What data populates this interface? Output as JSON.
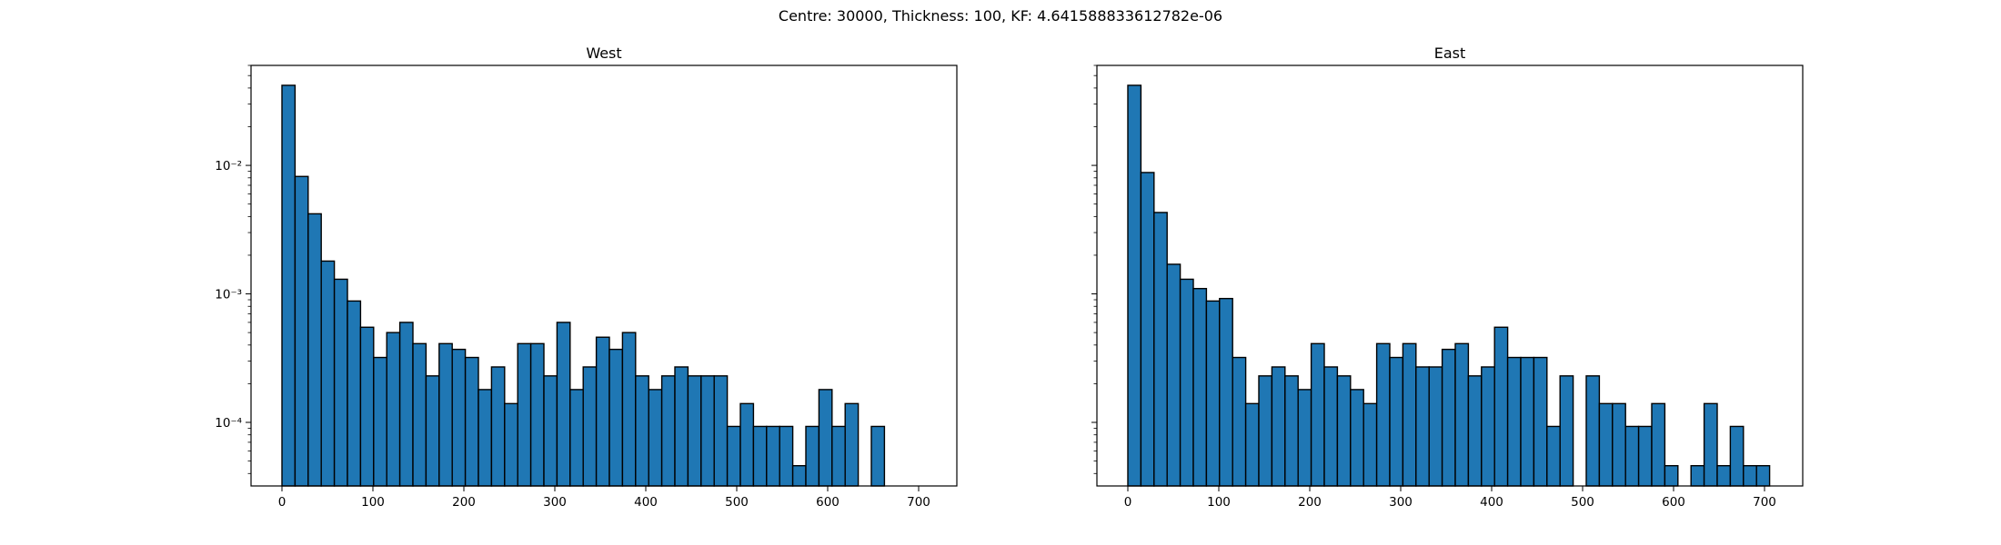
{
  "figure_title": "Centre: 30000, Thickness: 100, KF: 4.641588833612782e-06",
  "colors": {
    "bar_fill": "#1f77b4",
    "bar_edge": "#000000",
    "axes": "#000000"
  },
  "chart_data": [
    {
      "type": "bar",
      "title": "West",
      "xlabel": "",
      "ylabel": "",
      "yscale": "log",
      "xlim": [
        -34,
        742
      ],
      "ylim": [
        3.2e-05,
        0.06
      ],
      "x_ticks": [
        0,
        100,
        200,
        300,
        400,
        500,
        600,
        700
      ],
      "y_ticks": [
        0.0001,
        0.001,
        0.01
      ],
      "y_tick_labels": [
        "10⁻⁴",
        "10⁻³",
        "10⁻²"
      ],
      "bin_edges": [
        0,
        14.4,
        28.8,
        43.2,
        57.6,
        72,
        86.4,
        100.8,
        115.2,
        129.6,
        144,
        158.4,
        172.8,
        187.2,
        201.6,
        216,
        230.4,
        244.8,
        259.2,
        273.6,
        288,
        302.4,
        316.8,
        331.2,
        345.6,
        360,
        374.4,
        388.8,
        403.2,
        417.6,
        432,
        446.4,
        460.8,
        475.2,
        489.6,
        504,
        518.4,
        532.8,
        547.2,
        561.6,
        576,
        590.4,
        604.8,
        619.2,
        633.6,
        648,
        662.4,
        676.8,
        691.2,
        705.6
      ],
      "values": [
        0.042,
        0.0082,
        0.0042,
        0.0018,
        0.0013,
        0.00088,
        0.00055,
        0.00032,
        0.0005,
        0.0006,
        0.00041,
        0.00023,
        0.00041,
        0.00037,
        0.00032,
        0.00018,
        0.00027,
        0.00014,
        0.00041,
        0.00041,
        0.00023,
        0.0006,
        0.00018,
        0.00027,
        0.00046,
        0.00037,
        0.0005,
        0.00023,
        0.00018,
        0.00023,
        0.00027,
        0.00023,
        0.00023,
        0.00023,
        9.3e-05,
        0.00014,
        9.3e-05,
        9.3e-05,
        9.3e-05,
        4.6e-05,
        9.3e-05,
        0.00018,
        9.3e-05,
        0.00014,
        0,
        9.3e-05,
        0,
        0,
        0
      ]
    },
    {
      "type": "bar",
      "title": "East",
      "xlabel": "",
      "ylabel": "",
      "yscale": "log",
      "xlim": [
        -34,
        742
      ],
      "ylim": [
        3.2e-05,
        0.06
      ],
      "x_ticks": [
        0,
        100,
        200,
        300,
        400,
        500,
        600,
        700
      ],
      "y_ticks": [
        0.0001,
        0.001,
        0.01
      ],
      "y_tick_labels": [],
      "bin_edges": [
        0,
        14.4,
        28.8,
        43.2,
        57.6,
        72,
        86.4,
        100.8,
        115.2,
        129.6,
        144,
        158.4,
        172.8,
        187.2,
        201.6,
        216,
        230.4,
        244.8,
        259.2,
        273.6,
        288,
        302.4,
        316.8,
        331.2,
        345.6,
        360,
        374.4,
        388.8,
        403.2,
        417.6,
        432,
        446.4,
        460.8,
        475.2,
        489.6,
        504,
        518.4,
        532.8,
        547.2,
        561.6,
        576,
        590.4,
        604.8,
        619.2,
        633.6,
        648,
        662.4,
        676.8,
        691.2,
        705.6
      ],
      "values": [
        0.042,
        0.0088,
        0.0043,
        0.0017,
        0.0013,
        0.0011,
        0.00088,
        0.00092,
        0.00032,
        0.00014,
        0.00023,
        0.00027,
        0.00023,
        0.00018,
        0.00041,
        0.00027,
        0.00023,
        0.00018,
        0.00014,
        0.00041,
        0.00032,
        0.00041,
        0.00027,
        0.00027,
        0.00037,
        0.00041,
        0.00023,
        0.00027,
        0.00055,
        0.00032,
        0.00032,
        0.00032,
        9.3e-05,
        0.00023,
        0,
        0.00023,
        0.00014,
        0.00014,
        9.3e-05,
        9.3e-05,
        0.00014,
        4.6e-05,
        0,
        4.6e-05,
        0.00014,
        4.6e-05,
        9.3e-05,
        4.6e-05,
        4.6e-05
      ]
    }
  ]
}
